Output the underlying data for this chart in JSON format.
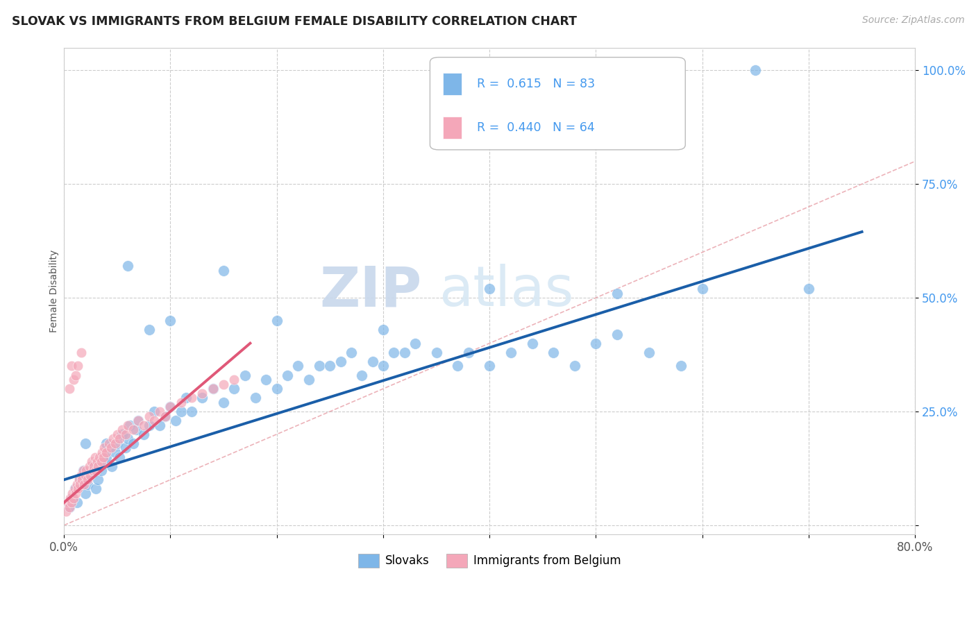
{
  "title": "SLOVAK VS IMMIGRANTS FROM BELGIUM FEMALE DISABILITY CORRELATION CHART",
  "source_text": "Source: ZipAtlas.com",
  "ylabel": "Female Disability",
  "xlim": [
    0.0,
    0.8
  ],
  "ylim": [
    -0.02,
    1.05
  ],
  "blue_color": "#7EB6E8",
  "pink_color": "#F4A7B9",
  "blue_line_color": "#1A5EA8",
  "pink_line_color": "#E05878",
  "diag_color": "#E8A0A8",
  "R_blue": 0.615,
  "N_blue": 83,
  "R_pink": 0.44,
  "N_pink": 64,
  "watermark_zip": "ZIP",
  "watermark_atlas": "atlas",
  "blue_scatter_x": [
    0.005,
    0.008,
    0.01,
    0.012,
    0.015,
    0.018,
    0.02,
    0.022,
    0.025,
    0.028,
    0.03,
    0.032,
    0.035,
    0.038,
    0.04,
    0.042,
    0.045,
    0.048,
    0.05,
    0.052,
    0.055,
    0.058,
    0.06,
    0.062,
    0.065,
    0.068,
    0.07,
    0.075,
    0.08,
    0.085,
    0.09,
    0.095,
    0.1,
    0.105,
    0.11,
    0.115,
    0.12,
    0.13,
    0.14,
    0.15,
    0.16,
    0.17,
    0.18,
    0.19,
    0.2,
    0.21,
    0.22,
    0.23,
    0.24,
    0.25,
    0.26,
    0.27,
    0.28,
    0.29,
    0.3,
    0.31,
    0.32,
    0.33,
    0.35,
    0.37,
    0.38,
    0.4,
    0.42,
    0.44,
    0.46,
    0.48,
    0.5,
    0.52,
    0.55,
    0.58,
    0.6,
    0.65,
    0.7,
    0.52,
    0.4,
    0.3,
    0.2,
    0.15,
    0.1,
    0.08,
    0.06,
    0.04,
    0.02
  ],
  "blue_scatter_y": [
    0.04,
    0.06,
    0.08,
    0.05,
    0.1,
    0.12,
    0.07,
    0.09,
    0.11,
    0.13,
    0.08,
    0.1,
    0.12,
    0.14,
    0.15,
    0.17,
    0.13,
    0.16,
    0.18,
    0.15,
    0.2,
    0.17,
    0.19,
    0.22,
    0.18,
    0.21,
    0.23,
    0.2,
    0.22,
    0.25,
    0.22,
    0.24,
    0.26,
    0.23,
    0.25,
    0.28,
    0.25,
    0.28,
    0.3,
    0.27,
    0.3,
    0.33,
    0.28,
    0.32,
    0.3,
    0.33,
    0.35,
    0.32,
    0.35,
    0.35,
    0.36,
    0.38,
    0.33,
    0.36,
    0.35,
    0.38,
    0.38,
    0.4,
    0.38,
    0.35,
    0.38,
    0.35,
    0.38,
    0.4,
    0.38,
    0.35,
    0.4,
    0.42,
    0.38,
    0.35,
    0.52,
    1.0,
    0.52,
    0.51,
    0.52,
    0.43,
    0.45,
    0.56,
    0.45,
    0.43,
    0.57,
    0.18,
    0.18
  ],
  "pink_scatter_x": [
    0.002,
    0.004,
    0.005,
    0.006,
    0.007,
    0.008,
    0.009,
    0.01,
    0.011,
    0.012,
    0.013,
    0.014,
    0.015,
    0.016,
    0.017,
    0.018,
    0.019,
    0.02,
    0.021,
    0.022,
    0.024,
    0.025,
    0.026,
    0.027,
    0.028,
    0.029,
    0.03,
    0.031,
    0.032,
    0.033,
    0.035,
    0.036,
    0.037,
    0.038,
    0.04,
    0.042,
    0.044,
    0.046,
    0.048,
    0.05,
    0.052,
    0.055,
    0.058,
    0.06,
    0.065,
    0.07,
    0.075,
    0.08,
    0.085,
    0.09,
    0.095,
    0.1,
    0.11,
    0.12,
    0.13,
    0.14,
    0.15,
    0.16,
    0.005,
    0.007,
    0.009,
    0.011,
    0.013,
    0.016
  ],
  "pink_scatter_y": [
    0.03,
    0.05,
    0.04,
    0.06,
    0.05,
    0.07,
    0.06,
    0.08,
    0.07,
    0.09,
    0.08,
    0.1,
    0.09,
    0.11,
    0.1,
    0.12,
    0.09,
    0.11,
    0.12,
    0.1,
    0.13,
    0.11,
    0.14,
    0.12,
    0.13,
    0.15,
    0.12,
    0.14,
    0.13,
    0.15,
    0.14,
    0.16,
    0.15,
    0.17,
    0.16,
    0.18,
    0.17,
    0.19,
    0.18,
    0.2,
    0.19,
    0.21,
    0.2,
    0.22,
    0.21,
    0.23,
    0.22,
    0.24,
    0.23,
    0.25,
    0.24,
    0.26,
    0.27,
    0.28,
    0.29,
    0.3,
    0.31,
    0.32,
    0.3,
    0.35,
    0.32,
    0.33,
    0.35,
    0.38
  ]
}
